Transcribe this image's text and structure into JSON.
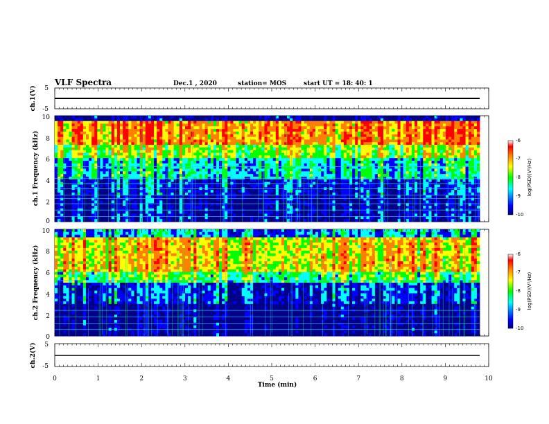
{
  "header": {
    "title": "VLF Spectra",
    "date": "Dec.1 , 2020",
    "station": "station= MOS",
    "start_time": "start  UT =   18: 40: 1"
  },
  "chart_data": [
    {
      "type": "line",
      "ylabel": "ch.1(V)",
      "ylim": [
        -5,
        5
      ],
      "yticks": [
        "5",
        "-5"
      ],
      "xlim": [
        0,
        10
      ],
      "series": [
        {
          "values": [
            0,
            0
          ]
        }
      ]
    },
    {
      "type": "heatmap",
      "ylabel": "ch.1 Frequency (kHz)",
      "ylim": [
        0,
        10
      ],
      "yticks": [
        "0",
        "2",
        "4",
        "6",
        "8",
        "10"
      ],
      "xlim": [
        0,
        10
      ],
      "colorbar": {
        "label": "log(PSD)(V²/Hz)",
        "ticks": [
          "-6",
          "-7",
          "-8",
          "-9",
          "-10"
        ],
        "range": [
          -10,
          -6
        ]
      },
      "note": "broadband emission strongest 7-9 kHz"
    },
    {
      "type": "heatmap",
      "ylabel": "ch.2 Frequency (kHz)",
      "ylim": [
        0,
        10
      ],
      "yticks": [
        "0",
        "2",
        "4",
        "6",
        "8",
        "10"
      ],
      "xlim": [
        0,
        10
      ],
      "colorbar": {
        "label": "log(PSD)(V²/Hz)",
        "ticks": [
          "-6",
          "-7",
          "-8",
          "-9",
          "-10"
        ],
        "range": [
          -10,
          -6
        ]
      },
      "note": "broadband emission strongest 6-8 kHz"
    },
    {
      "type": "line",
      "ylabel": "ch.2(V)",
      "ylim": [
        -5,
        5
      ],
      "yticks": [
        "5",
        "-5"
      ],
      "xlim": [
        0,
        10
      ],
      "series": [
        {
          "values": [
            0,
            0
          ]
        }
      ]
    }
  ],
  "xaxis": {
    "label": "Time  (min)",
    "ticks": [
      "0",
      "1",
      "2",
      "3",
      "4",
      "5",
      "6",
      "7",
      "8",
      "9",
      "10"
    ]
  },
  "colors": {
    "colormap": [
      "#000088",
      "#0000ff",
      "#00ffff",
      "#00ff00",
      "#ffff00",
      "#ff8000",
      "#ff0000",
      "#ffffff"
    ]
  }
}
